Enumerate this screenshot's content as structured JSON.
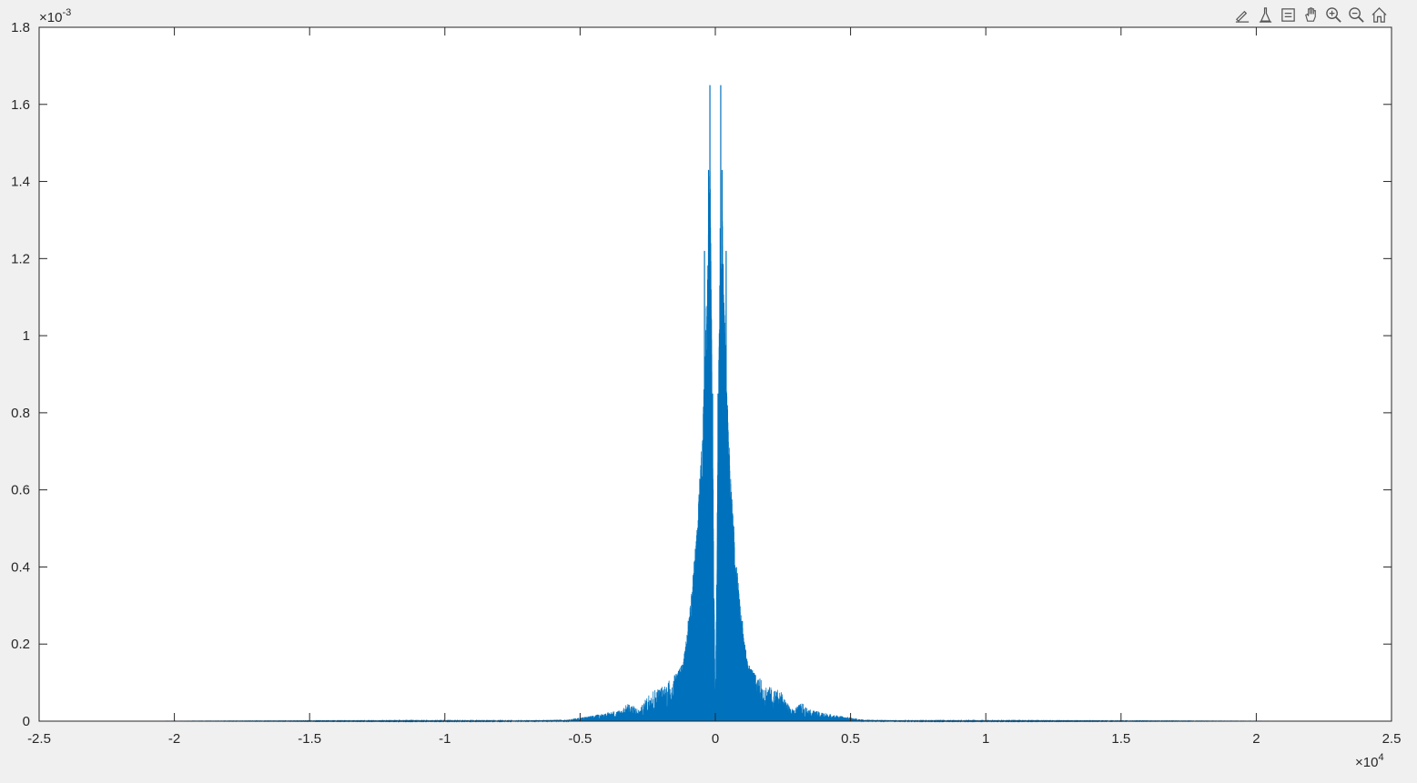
{
  "toolbar": {
    "buttons": [
      {
        "name": "brush-icon",
        "tooltip": ""
      },
      {
        "name": "data-tips-icon",
        "tooltip": ""
      },
      {
        "name": "legend-icon",
        "tooltip": ""
      },
      {
        "name": "pan-hand-icon",
        "tooltip": ""
      },
      {
        "name": "zoom-in-icon",
        "tooltip": ""
      },
      {
        "name": "zoom-out-icon",
        "tooltip": ""
      },
      {
        "name": "home-restore-view-icon",
        "tooltip": ""
      }
    ]
  },
  "colors": {
    "background": "#f0f0f0",
    "axes_background": "#ffffff",
    "line": "#0072bd",
    "axis": "#262626"
  },
  "chart_data": {
    "type": "line",
    "title": "",
    "xlabel": "",
    "ylabel": "",
    "xlim": [
      -25000,
      25000
    ],
    "ylim": [
      0,
      0.0018
    ],
    "x_exponent_label": "×10",
    "x_exponent": "4",
    "y_exponent_label": "×10",
    "y_exponent": "-3",
    "x_ticks": [
      -25000,
      -20000,
      -15000,
      -10000,
      -5000,
      0,
      5000,
      10000,
      15000,
      20000,
      25000
    ],
    "x_tick_labels": [
      "-2.5",
      "-2",
      "-1.5",
      "-1",
      "-0.5",
      "0",
      "0.5",
      "1",
      "1.5",
      "2",
      "2.5"
    ],
    "y_ticks": [
      0,
      0.0002,
      0.0004,
      0.0006,
      0.0008,
      0.001,
      0.0012,
      0.0014,
      0.0016,
      0.0018
    ],
    "y_tick_labels": [
      "0",
      "0.2",
      "0.4",
      "0.6",
      "0.8",
      "1",
      "1.2",
      "1.4",
      "1.6",
      "1.8"
    ],
    "grid": false,
    "legend": "none",
    "series": [
      {
        "data_range_x": [
          -22050,
          22050
        ],
        "spectrum_envelope": [
          {
            "x": -22050,
            "y": 0.0
          },
          {
            "x": -8000,
            "y": 1e-06
          },
          {
            "x": -5500,
            "y": 4e-06
          },
          {
            "x": -4500,
            "y": 1.5e-05
          },
          {
            "x": -3500,
            "y": 3e-05
          },
          {
            "x": -3200,
            "y": 4.8e-05
          },
          {
            "x": -2800,
            "y": 3e-05
          },
          {
            "x": -2400,
            "y": 8e-05
          },
          {
            "x": -2000,
            "y": 9e-05
          },
          {
            "x": -1500,
            "y": 0.00012
          },
          {
            "x": -1200,
            "y": 0.00015
          },
          {
            "x": -1000,
            "y": 0.00025
          },
          {
            "x": -800,
            "y": 0.0004
          },
          {
            "x": -600,
            "y": 0.0006
          },
          {
            "x": -400,
            "y": 0.0009
          },
          {
            "x": -200,
            "y": 0.0015
          },
          {
            "x": -100,
            "y": 0.0008
          },
          {
            "x": 0,
            "y": 2e-05
          },
          {
            "x": 100,
            "y": 0.0008
          },
          {
            "x": 200,
            "y": 0.0015
          },
          {
            "x": 400,
            "y": 0.0009
          },
          {
            "x": 600,
            "y": 0.0006
          },
          {
            "x": 800,
            "y": 0.0004
          },
          {
            "x": 1000,
            "y": 0.00025
          },
          {
            "x": 1200,
            "y": 0.00015
          },
          {
            "x": 1500,
            "y": 0.00012
          },
          {
            "x": 2000,
            "y": 9e-05
          },
          {
            "x": 2400,
            "y": 8e-05
          },
          {
            "x": 2800,
            "y": 3e-05
          },
          {
            "x": 3200,
            "y": 4.8e-05
          },
          {
            "x": 3500,
            "y": 3e-05
          },
          {
            "x": 4500,
            "y": 1.5e-05
          },
          {
            "x": 5500,
            "y": 4e-06
          },
          {
            "x": 8000,
            "y": 1e-06
          },
          {
            "x": 22050,
            "y": 0.0
          }
        ],
        "peaks": [
          {
            "x": -200,
            "y": 0.00165
          },
          {
            "x": 200,
            "y": 0.00165
          },
          {
            "x": -250,
            "y": 0.00143
          },
          {
            "x": 250,
            "y": 0.00143
          },
          {
            "x": -400,
            "y": 0.00122
          },
          {
            "x": 400,
            "y": 0.00122
          },
          {
            "x": -300,
            "y": 0.00085
          },
          {
            "x": 300,
            "y": 0.00085
          },
          {
            "x": -100,
            "y": 0.00085
          },
          {
            "x": 100,
            "y": 0.00085
          },
          {
            "x": -1000,
            "y": 0.00026
          },
          {
            "x": 1000,
            "y": 0.00026
          }
        ]
      }
    ]
  }
}
